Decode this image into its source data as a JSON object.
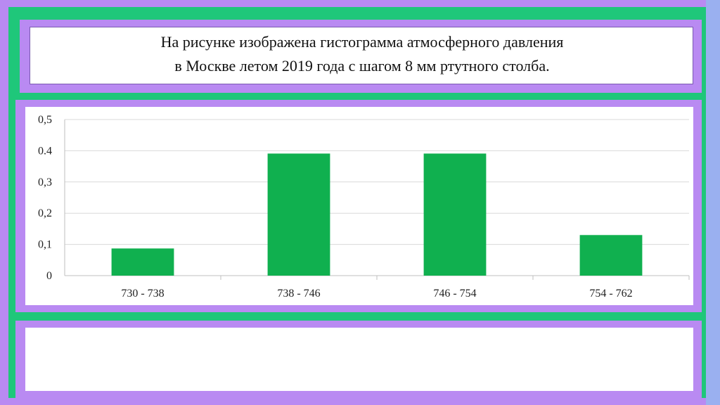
{
  "slide": {
    "title_line1": "На рисунке изображена гистограмма атмосферного давления",
    "title_line2": "в Москве летом 2019 года с шагом 8 мм ртутного  столба."
  },
  "colors": {
    "background": "#1fc77a",
    "frame": "#b98af2",
    "bar": "#10b04f",
    "grid": "#d9d9d9"
  },
  "chart_data": {
    "type": "bar",
    "categories": [
      "730 - 738",
      "738 - 746",
      "746 - 754",
      "754 - 762"
    ],
    "values": [
      0.087,
      0.391,
      0.391,
      0.13
    ],
    "y_ticks": [
      "0",
      "0,1",
      "0,2",
      "0,3",
      "0.4",
      "0,5"
    ],
    "ylim": [
      0,
      0.5
    ],
    "grid": true,
    "legend": "none"
  }
}
